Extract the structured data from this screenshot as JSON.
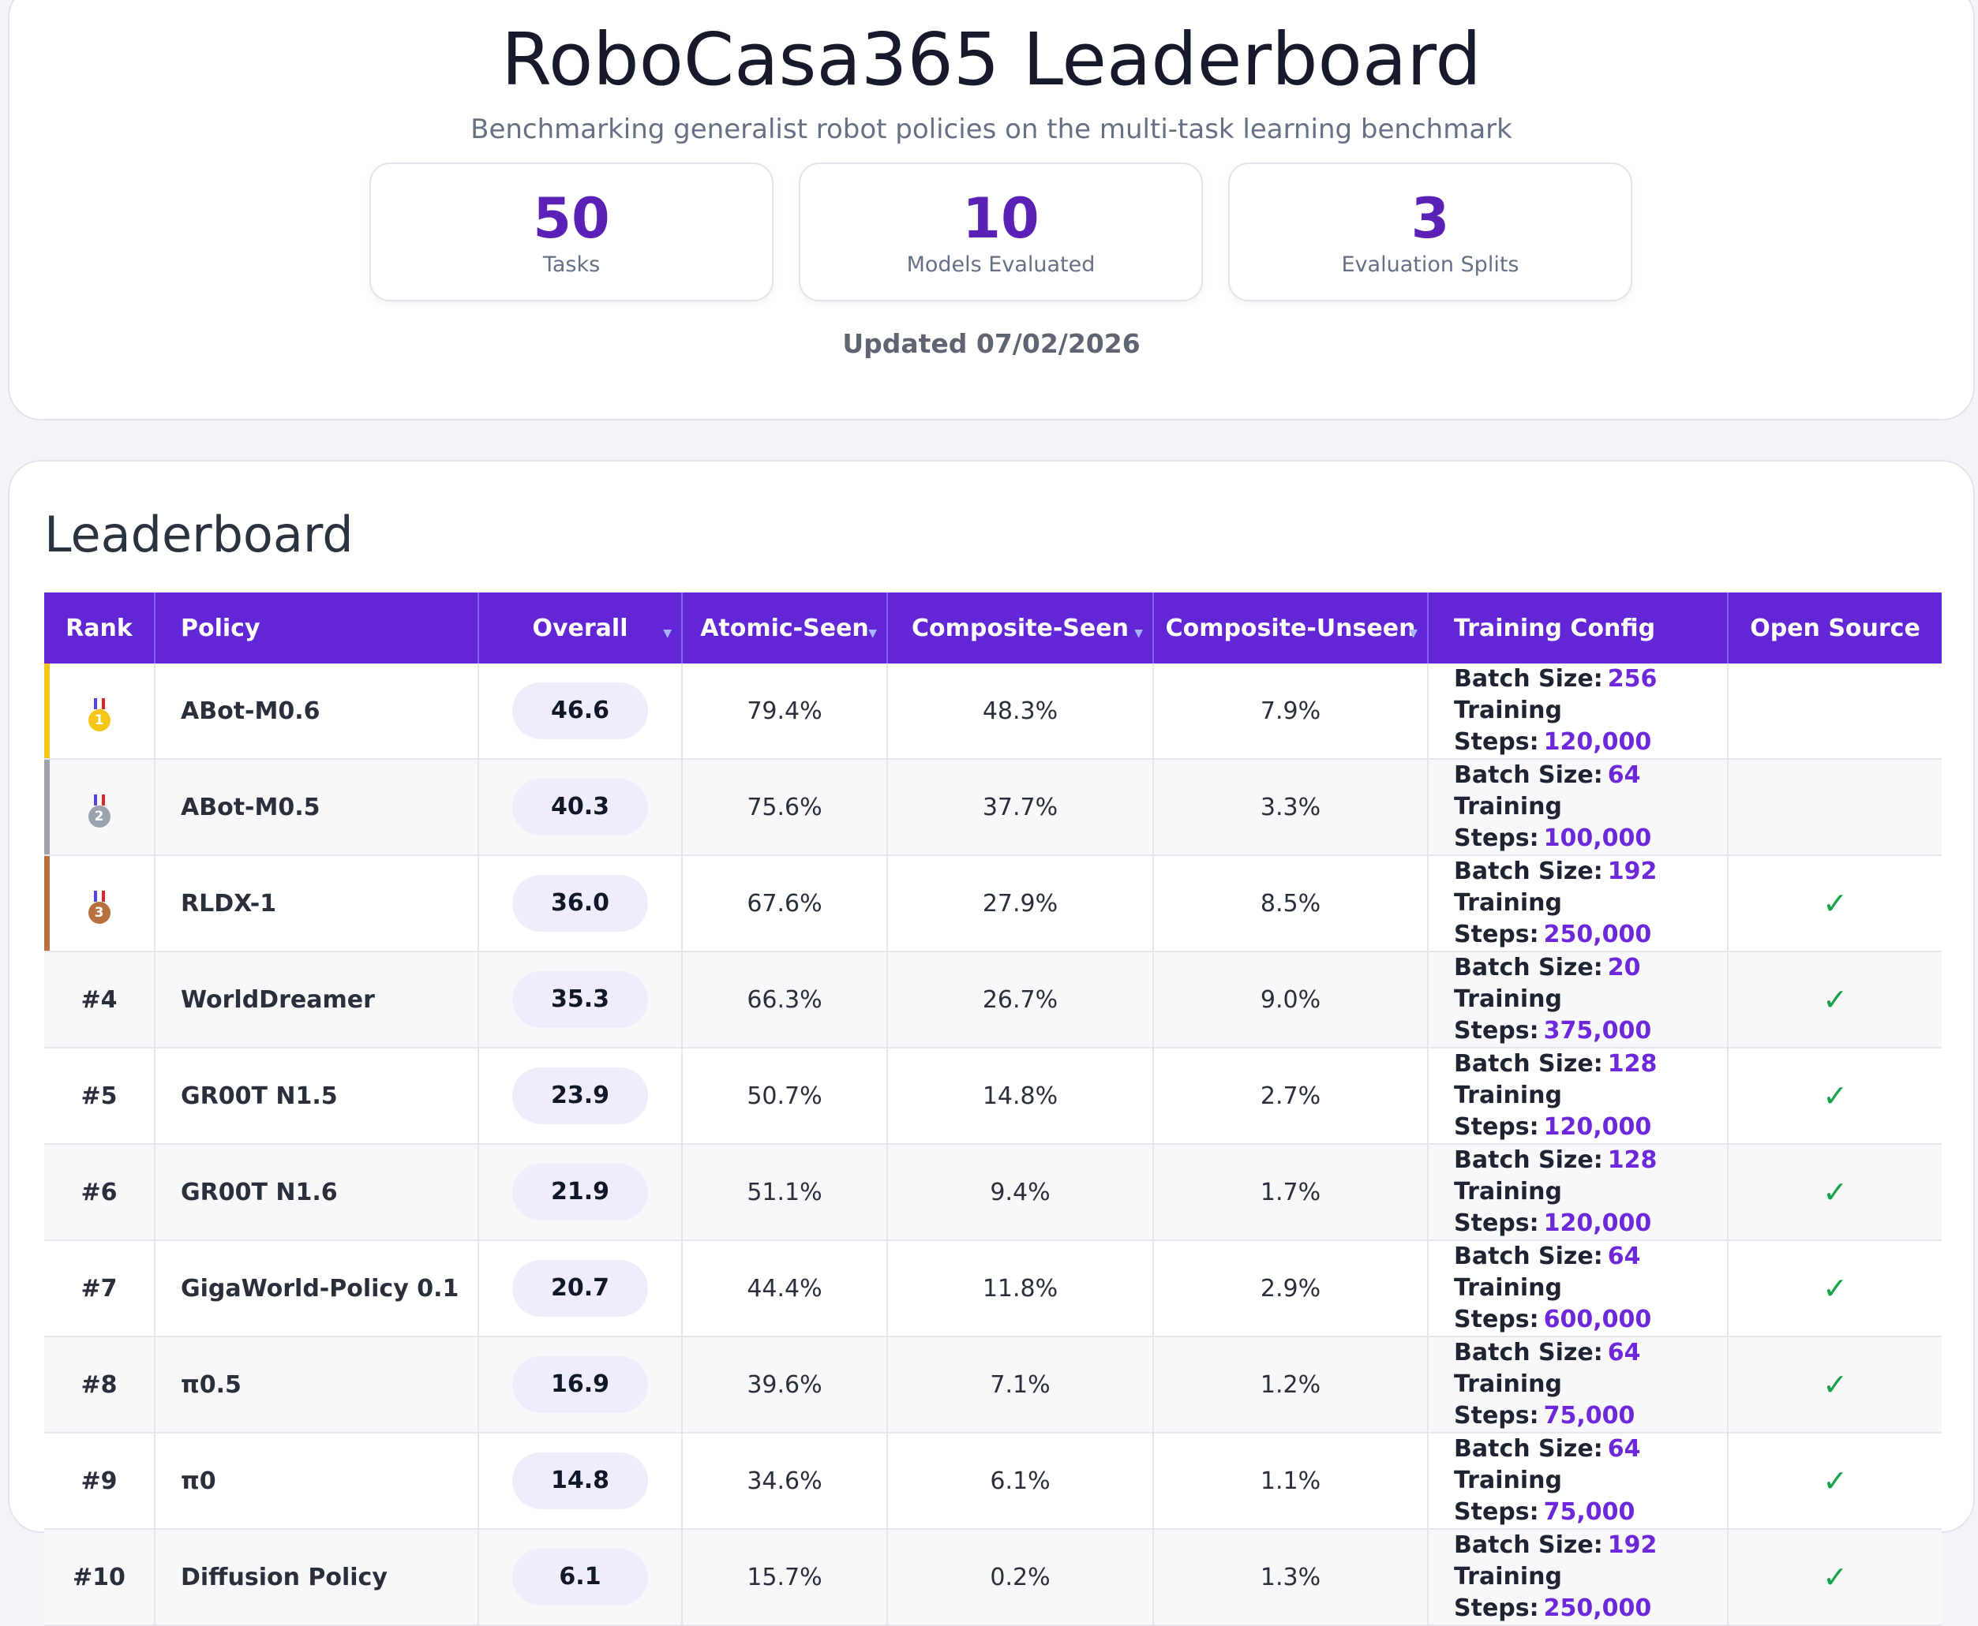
{
  "header": {
    "title": "RoboCasa365 Leaderboard",
    "subtitle": "Benchmarking generalist robot policies on the multi-task learning benchmark",
    "stats": [
      {
        "value": "50",
        "label": "Tasks"
      },
      {
        "value": "10",
        "label": "Models Evaluated"
      },
      {
        "value": "3",
        "label": "Evaluation Splits"
      }
    ],
    "updated": "Updated 07/02/2026"
  },
  "board": {
    "title": "Leaderboard",
    "columns": {
      "rank": "Rank",
      "policy": "Policy",
      "overall": "Overall",
      "atomic_seen": "Atomic-Seen",
      "composite_seen": "Composite-Seen",
      "composite_unseen": "Composite-Unseen",
      "training_config": "Training Config",
      "open_source": "Open Source"
    },
    "batch_label": "Batch Size:",
    "steps_label": "Training Steps:",
    "open_source_mark": "✓",
    "medal_colors": {
      "gold": "#f5c518",
      "silver": "#9ca3af",
      "bronze": "#b8703f"
    },
    "rows": [
      {
        "rank": "1",
        "medal": "gold",
        "policy": "ABot-M0.6",
        "overall": "46.6",
        "atomic_seen": "79.4%",
        "composite_seen": "48.3%",
        "composite_unseen": "7.9%",
        "batch": "256",
        "steps": "120,000",
        "open_source": false
      },
      {
        "rank": "2",
        "medal": "silver",
        "policy": "ABot-M0.5",
        "overall": "40.3",
        "atomic_seen": "75.6%",
        "composite_seen": "37.7%",
        "composite_unseen": "3.3%",
        "batch": "64",
        "steps": "100,000",
        "open_source": false
      },
      {
        "rank": "3",
        "medal": "bronze",
        "policy": "RLDX-1",
        "overall": "36.0",
        "atomic_seen": "67.6%",
        "composite_seen": "27.9%",
        "composite_unseen": "8.5%",
        "batch": "192",
        "steps": "250,000",
        "open_source": true
      },
      {
        "rank": "#4",
        "medal": "",
        "policy": "WorldDreamer",
        "overall": "35.3",
        "atomic_seen": "66.3%",
        "composite_seen": "26.7%",
        "composite_unseen": "9.0%",
        "batch": "20",
        "steps": "375,000",
        "open_source": true
      },
      {
        "rank": "#5",
        "medal": "",
        "policy": "GR00T N1.5",
        "overall": "23.9",
        "atomic_seen": "50.7%",
        "composite_seen": "14.8%",
        "composite_unseen": "2.7%",
        "batch": "128",
        "steps": "120,000",
        "open_source": true
      },
      {
        "rank": "#6",
        "medal": "",
        "policy": "GR00T N1.6",
        "overall": "21.9",
        "atomic_seen": "51.1%",
        "composite_seen": "9.4%",
        "composite_unseen": "1.7%",
        "batch": "128",
        "steps": "120,000",
        "open_source": true
      },
      {
        "rank": "#7",
        "medal": "",
        "policy": "GigaWorld-Policy 0.1",
        "overall": "20.7",
        "atomic_seen": "44.4%",
        "composite_seen": "11.8%",
        "composite_unseen": "2.9%",
        "batch": "64",
        "steps": "600,000",
        "open_source": true
      },
      {
        "rank": "#8",
        "medal": "",
        "policy": "π0.5",
        "overall": "16.9",
        "atomic_seen": "39.6%",
        "composite_seen": "7.1%",
        "composite_unseen": "1.2%",
        "batch": "64",
        "steps": "75,000",
        "open_source": true
      },
      {
        "rank": "#9",
        "medal": "",
        "policy": "π0",
        "overall": "14.8",
        "atomic_seen": "34.6%",
        "composite_seen": "6.1%",
        "composite_unseen": "1.1%",
        "batch": "64",
        "steps": "75,000",
        "open_source": true
      },
      {
        "rank": "#10",
        "medal": "",
        "policy": "Diffusion Policy",
        "overall": "6.1",
        "atomic_seen": "15.7%",
        "composite_seen": "0.2%",
        "composite_unseen": "1.3%",
        "batch": "192",
        "steps": "250,000",
        "open_source": true
      }
    ]
  }
}
